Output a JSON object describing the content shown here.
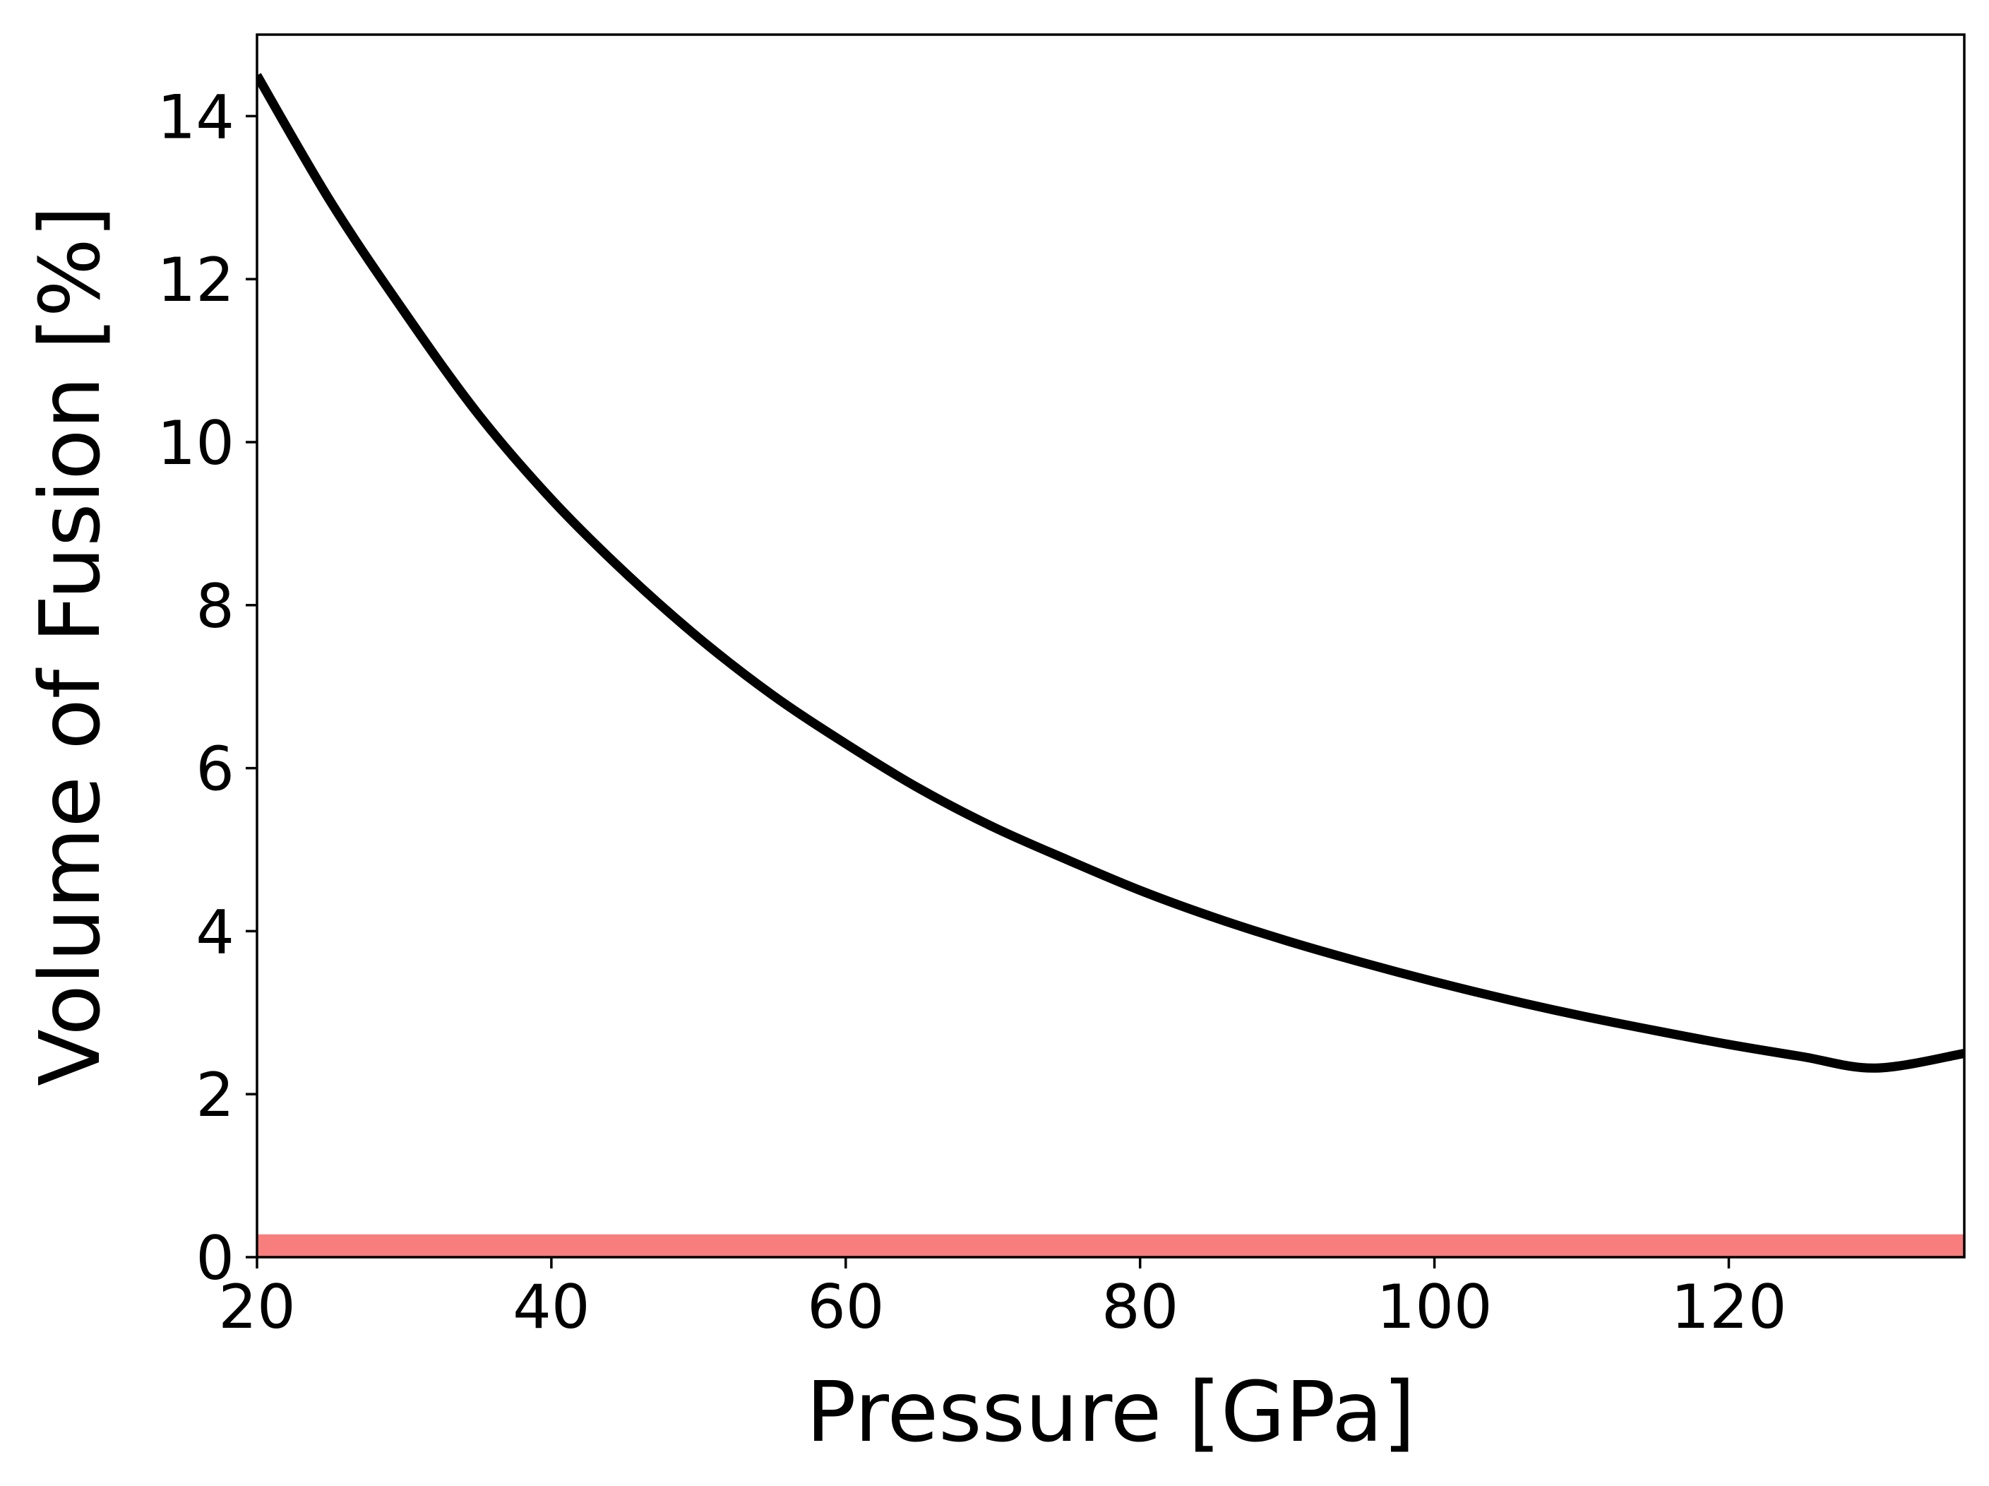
{
  "chart_data": {
    "type": "line",
    "title": "",
    "xlabel": "Pressure [GPa]",
    "ylabel": "Volume of Fusion [%]",
    "xlim": [
      20,
      136
    ],
    "ylim": [
      0,
      15
    ],
    "xticks": [
      20,
      40,
      60,
      80,
      100,
      120
    ],
    "yticks": [
      0,
      2,
      4,
      6,
      8,
      10,
      12,
      14
    ],
    "grid": false,
    "series": [
      {
        "color": "#000000",
        "x": [
          20,
          25,
          30,
          35,
          40,
          45,
          50,
          55,
          60,
          65,
          70,
          75,
          80,
          85,
          90,
          95,
          100,
          105,
          110,
          115,
          120,
          125,
          130,
          136
        ],
        "y": [
          14.5,
          12.95,
          11.6,
          10.35,
          9.3,
          8.4,
          7.6,
          6.9,
          6.3,
          5.75,
          5.28,
          4.88,
          4.5,
          4.17,
          3.88,
          3.62,
          3.38,
          3.16,
          2.96,
          2.78,
          2.61,
          2.46,
          2.32,
          2.5
        ]
      }
    ],
    "band": {
      "y": [
        0,
        0.28
      ],
      "color": "#f87d7d"
    }
  }
}
